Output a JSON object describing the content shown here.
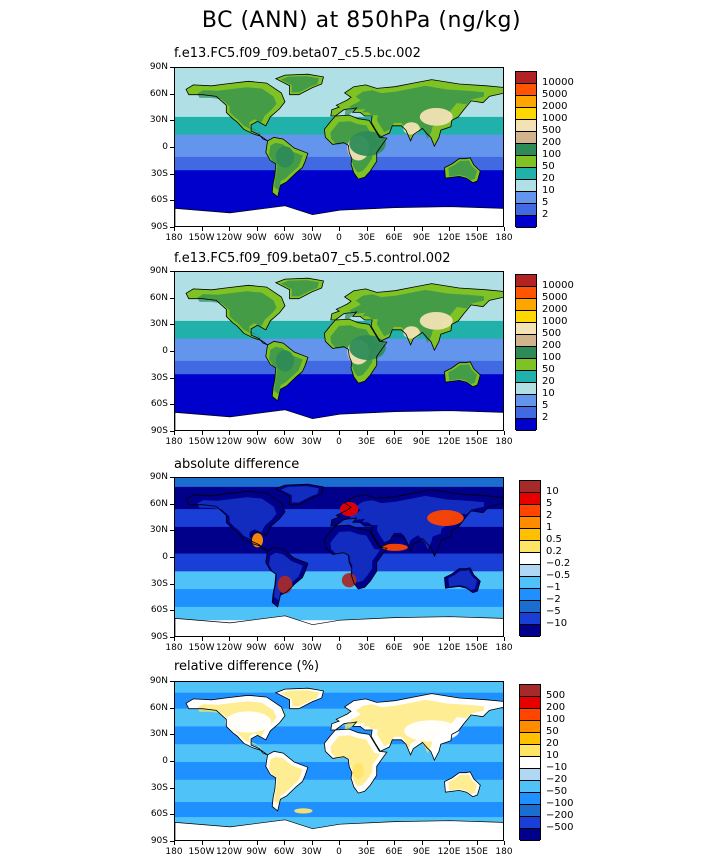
{
  "title": "BC (ANN) at 850hPa (ng/kg)",
  "lat_ticks": [
    "90N",
    "60N",
    "30N",
    "0",
    "30S",
    "60S",
    "90S"
  ],
  "lon_ticks": [
    "180",
    "150W",
    "120W",
    "90W",
    "60W",
    "30W",
    "0",
    "30E",
    "60E",
    "90E",
    "120E",
    "150E",
    "180"
  ],
  "panels": [
    {
      "title": "f.e13.FC5.f09_f09.beta07_c5.5.bc.002",
      "levels": [
        "10000",
        "5000",
        "2000",
        "1000",
        "500",
        "200",
        "100",
        "50",
        "20",
        "10",
        "5",
        "2"
      ],
      "colors": [
        "#b22222",
        "#ff5500",
        "#ffa500",
        "#ffd700",
        "#f2e2b4",
        "#d2b48c",
        "#2e8b57",
        "#7ec224",
        "#20b2aa",
        "#b0e0e6",
        "#6495ed",
        "#4169e1",
        "#0000cd"
      ]
    },
    {
      "title": "f.e13.FC5.f09_f09.beta07_c5.5.control.002",
      "levels": [
        "10000",
        "5000",
        "2000",
        "1000",
        "500",
        "200",
        "100",
        "50",
        "20",
        "10",
        "5",
        "2"
      ],
      "colors": [
        "#b22222",
        "#ff5500",
        "#ffa500",
        "#ffd700",
        "#f2e2b4",
        "#d2b48c",
        "#2e8b57",
        "#7ec224",
        "#20b2aa",
        "#b0e0e6",
        "#6495ed",
        "#4169e1",
        "#0000cd"
      ]
    },
    {
      "title": "absolute difference",
      "levels": [
        "10",
        "5",
        "2",
        "1",
        "0.5",
        "0.2",
        "−0.2",
        "−0.5",
        "−1",
        "−2",
        "−5",
        "−10"
      ],
      "colors": [
        "#a52a2a",
        "#e60000",
        "#ff4500",
        "#ff8c00",
        "#ffc000",
        "#ffe566",
        "#ffffff",
        "#b0d8f5",
        "#4fc3f7",
        "#1e90ff",
        "#1c6dd0",
        "#1a3fd6",
        "#00008b"
      ]
    },
    {
      "title": "relative difference (%)",
      "levels": [
        "500",
        "200",
        "100",
        "50",
        "20",
        "10",
        "−10",
        "−20",
        "−50",
        "−100",
        "−200",
        "−500"
      ],
      "colors": [
        "#a52a2a",
        "#e60000",
        "#ff4500",
        "#ff8c00",
        "#ffc000",
        "#ffe566",
        "#ffffff",
        "#b0d8f5",
        "#4fc3f7",
        "#1e90ff",
        "#1c6dd0",
        "#1a3fd6",
        "#00008b"
      ]
    }
  ]
}
